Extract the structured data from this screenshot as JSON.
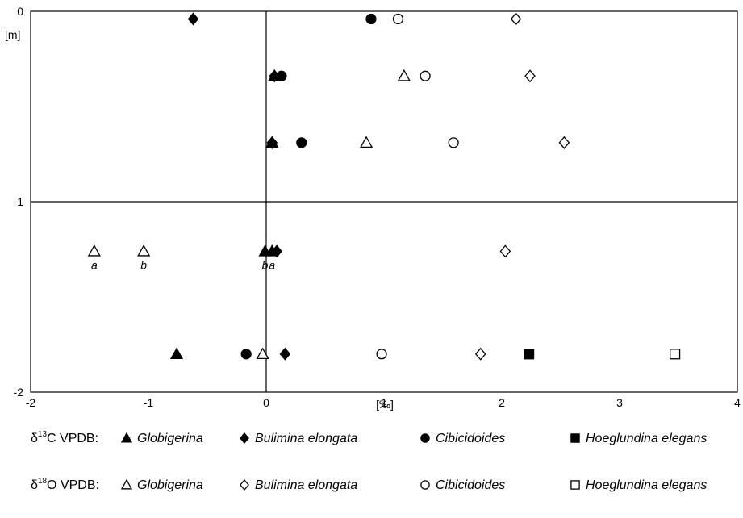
{
  "chart_data": {
    "type": "scatter",
    "xlabel": "[‰]",
    "ylabel": "[m]",
    "xlim": [
      -2,
      4
    ],
    "ylim": [
      -2,
      0
    ],
    "x_ticks": [
      "-2",
      "-1",
      "0",
      "1",
      "2",
      "3",
      "4"
    ],
    "y_ticks": [
      "0",
      "-1",
      "-2"
    ],
    "grid": false,
    "reference_lines": {
      "x": 0,
      "y": -1
    },
    "legend_placement": "bottom",
    "legend_rows": [
      {
        "prefix": "δ",
        "superscript": "13",
        "suffix": "C  VPDB:",
        "fill": "filled"
      },
      {
        "prefix": "δ",
        "superscript": "18",
        "suffix": "O  VPDB:",
        "fill": "open"
      }
    ],
    "taxa": [
      {
        "name": "Globigerina",
        "marker": "triangle"
      },
      {
        "name": "Bulimina elongata",
        "marker": "diamond"
      },
      {
        "name": "Cibicidoides",
        "marker": "circle"
      },
      {
        "name": "Hoeglundina elegans",
        "marker": "square"
      }
    ],
    "series": [
      {
        "isotope": "d13C",
        "taxon": "Globigerina",
        "points": [
          {
            "x": 0.07,
            "y": -0.34
          },
          {
            "x": 0.05,
            "y": -0.69
          },
          {
            "x": -0.01,
            "y": -1.26,
            "label": "b"
          },
          {
            "x": 0.05,
            "y": -1.26,
            "label": "a"
          },
          {
            "x": -0.76,
            "y": -1.8
          }
        ]
      },
      {
        "isotope": "d13C",
        "taxon": "Bulimina elongata",
        "points": [
          {
            "x": -0.62,
            "y": -0.04
          },
          {
            "x": 0.07,
            "y": -0.34
          },
          {
            "x": 0.05,
            "y": -0.69
          },
          {
            "x": 0.09,
            "y": -1.26
          },
          {
            "x": 0.16,
            "y": -1.8
          }
        ]
      },
      {
        "isotope": "d13C",
        "taxon": "Cibicidoides",
        "points": [
          {
            "x": 0.89,
            "y": -0.04
          },
          {
            "x": 0.13,
            "y": -0.34
          },
          {
            "x": 0.3,
            "y": -0.69
          },
          {
            "x": -0.17,
            "y": -1.8
          }
        ]
      },
      {
        "isotope": "d13C",
        "taxon": "Hoeglundina elegans",
        "points": [
          {
            "x": 2.23,
            "y": -1.8
          }
        ]
      },
      {
        "isotope": "d18O",
        "taxon": "Globigerina",
        "points": [
          {
            "x": 1.17,
            "y": -0.34
          },
          {
            "x": 0.85,
            "y": -0.69
          },
          {
            "x": -1.46,
            "y": -1.26,
            "label": "a"
          },
          {
            "x": -1.04,
            "y": -1.26,
            "label": "b"
          },
          {
            "x": -0.03,
            "y": -1.8
          }
        ]
      },
      {
        "isotope": "d18O",
        "taxon": "Bulimina elongata",
        "points": [
          {
            "x": 2.12,
            "y": -0.04
          },
          {
            "x": 2.24,
            "y": -0.34
          },
          {
            "x": 2.53,
            "y": -0.69
          },
          {
            "x": 2.03,
            "y": -1.26
          },
          {
            "x": 1.82,
            "y": -1.8
          }
        ]
      },
      {
        "isotope": "d18O",
        "taxon": "Cibicidoides",
        "points": [
          {
            "x": 1.12,
            "y": -0.04
          },
          {
            "x": 1.35,
            "y": -0.34
          },
          {
            "x": 1.59,
            "y": -0.69
          },
          {
            "x": 0.98,
            "y": -1.8
          }
        ]
      },
      {
        "isotope": "d18O",
        "taxon": "Hoeglundina elegans",
        "points": [
          {
            "x": 3.47,
            "y": -1.8
          }
        ]
      }
    ]
  }
}
